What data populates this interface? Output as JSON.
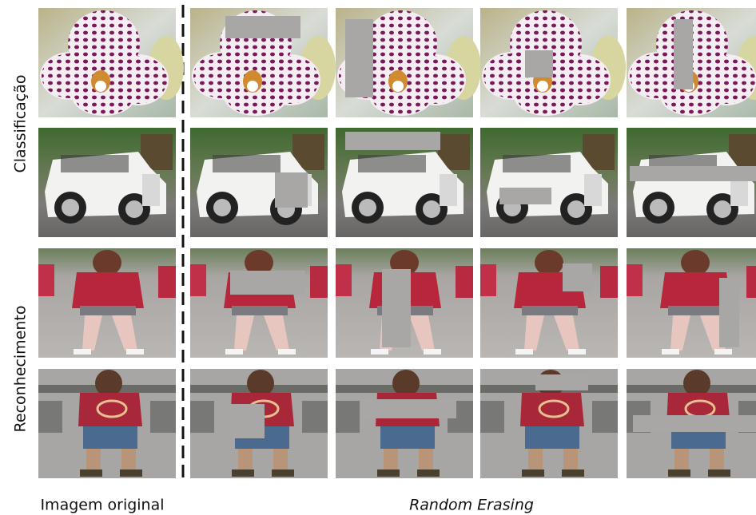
{
  "row_labels": [
    "Classificação",
    "Reconhecimento"
  ],
  "bottom_labels": {
    "original": "Imagem original",
    "method": "Random Erasing"
  }
}
